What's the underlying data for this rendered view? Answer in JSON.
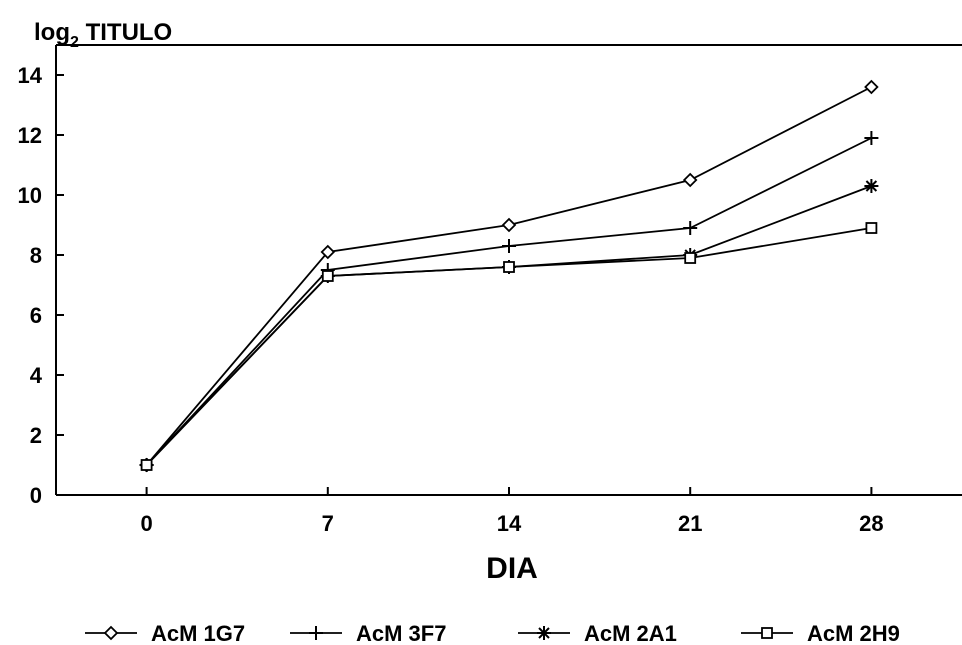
{
  "chart_data": {
    "type": "line",
    "title": "",
    "ylabel_main": "log",
    "ylabel_sub": "2",
    "ylabel_rest": " TITULO",
    "xlabel": "DIA",
    "x": [
      0,
      7,
      14,
      21,
      28
    ],
    "x_tick_labels": [
      "0",
      "7",
      "14",
      "21",
      "28"
    ],
    "y_ticks": [
      0,
      2,
      4,
      6,
      8,
      10,
      12,
      14
    ],
    "y_tick_labels": [
      "0",
      "2",
      "4",
      "6",
      "8",
      "10",
      "12",
      "14"
    ],
    "xlim": [
      -3.5,
      31.5
    ],
    "ylim": [
      0,
      15
    ],
    "grid": false,
    "legend_position": "bottom",
    "series": [
      {
        "name": "AcM 1G7",
        "marker": "diamond",
        "values": [
          1,
          8.1,
          9.0,
          10.5,
          13.6
        ]
      },
      {
        "name": "AcM 3F7",
        "marker": "plus",
        "values": [
          1,
          7.5,
          8.3,
          8.9,
          11.9
        ]
      },
      {
        "name": "AcM 2A1",
        "marker": "asterisk",
        "values": [
          1,
          7.3,
          7.6,
          8.0,
          10.3
        ]
      },
      {
        "name": "AcM 2H9",
        "marker": "square",
        "values": [
          1,
          7.3,
          7.6,
          7.9,
          8.9
        ]
      }
    ]
  }
}
